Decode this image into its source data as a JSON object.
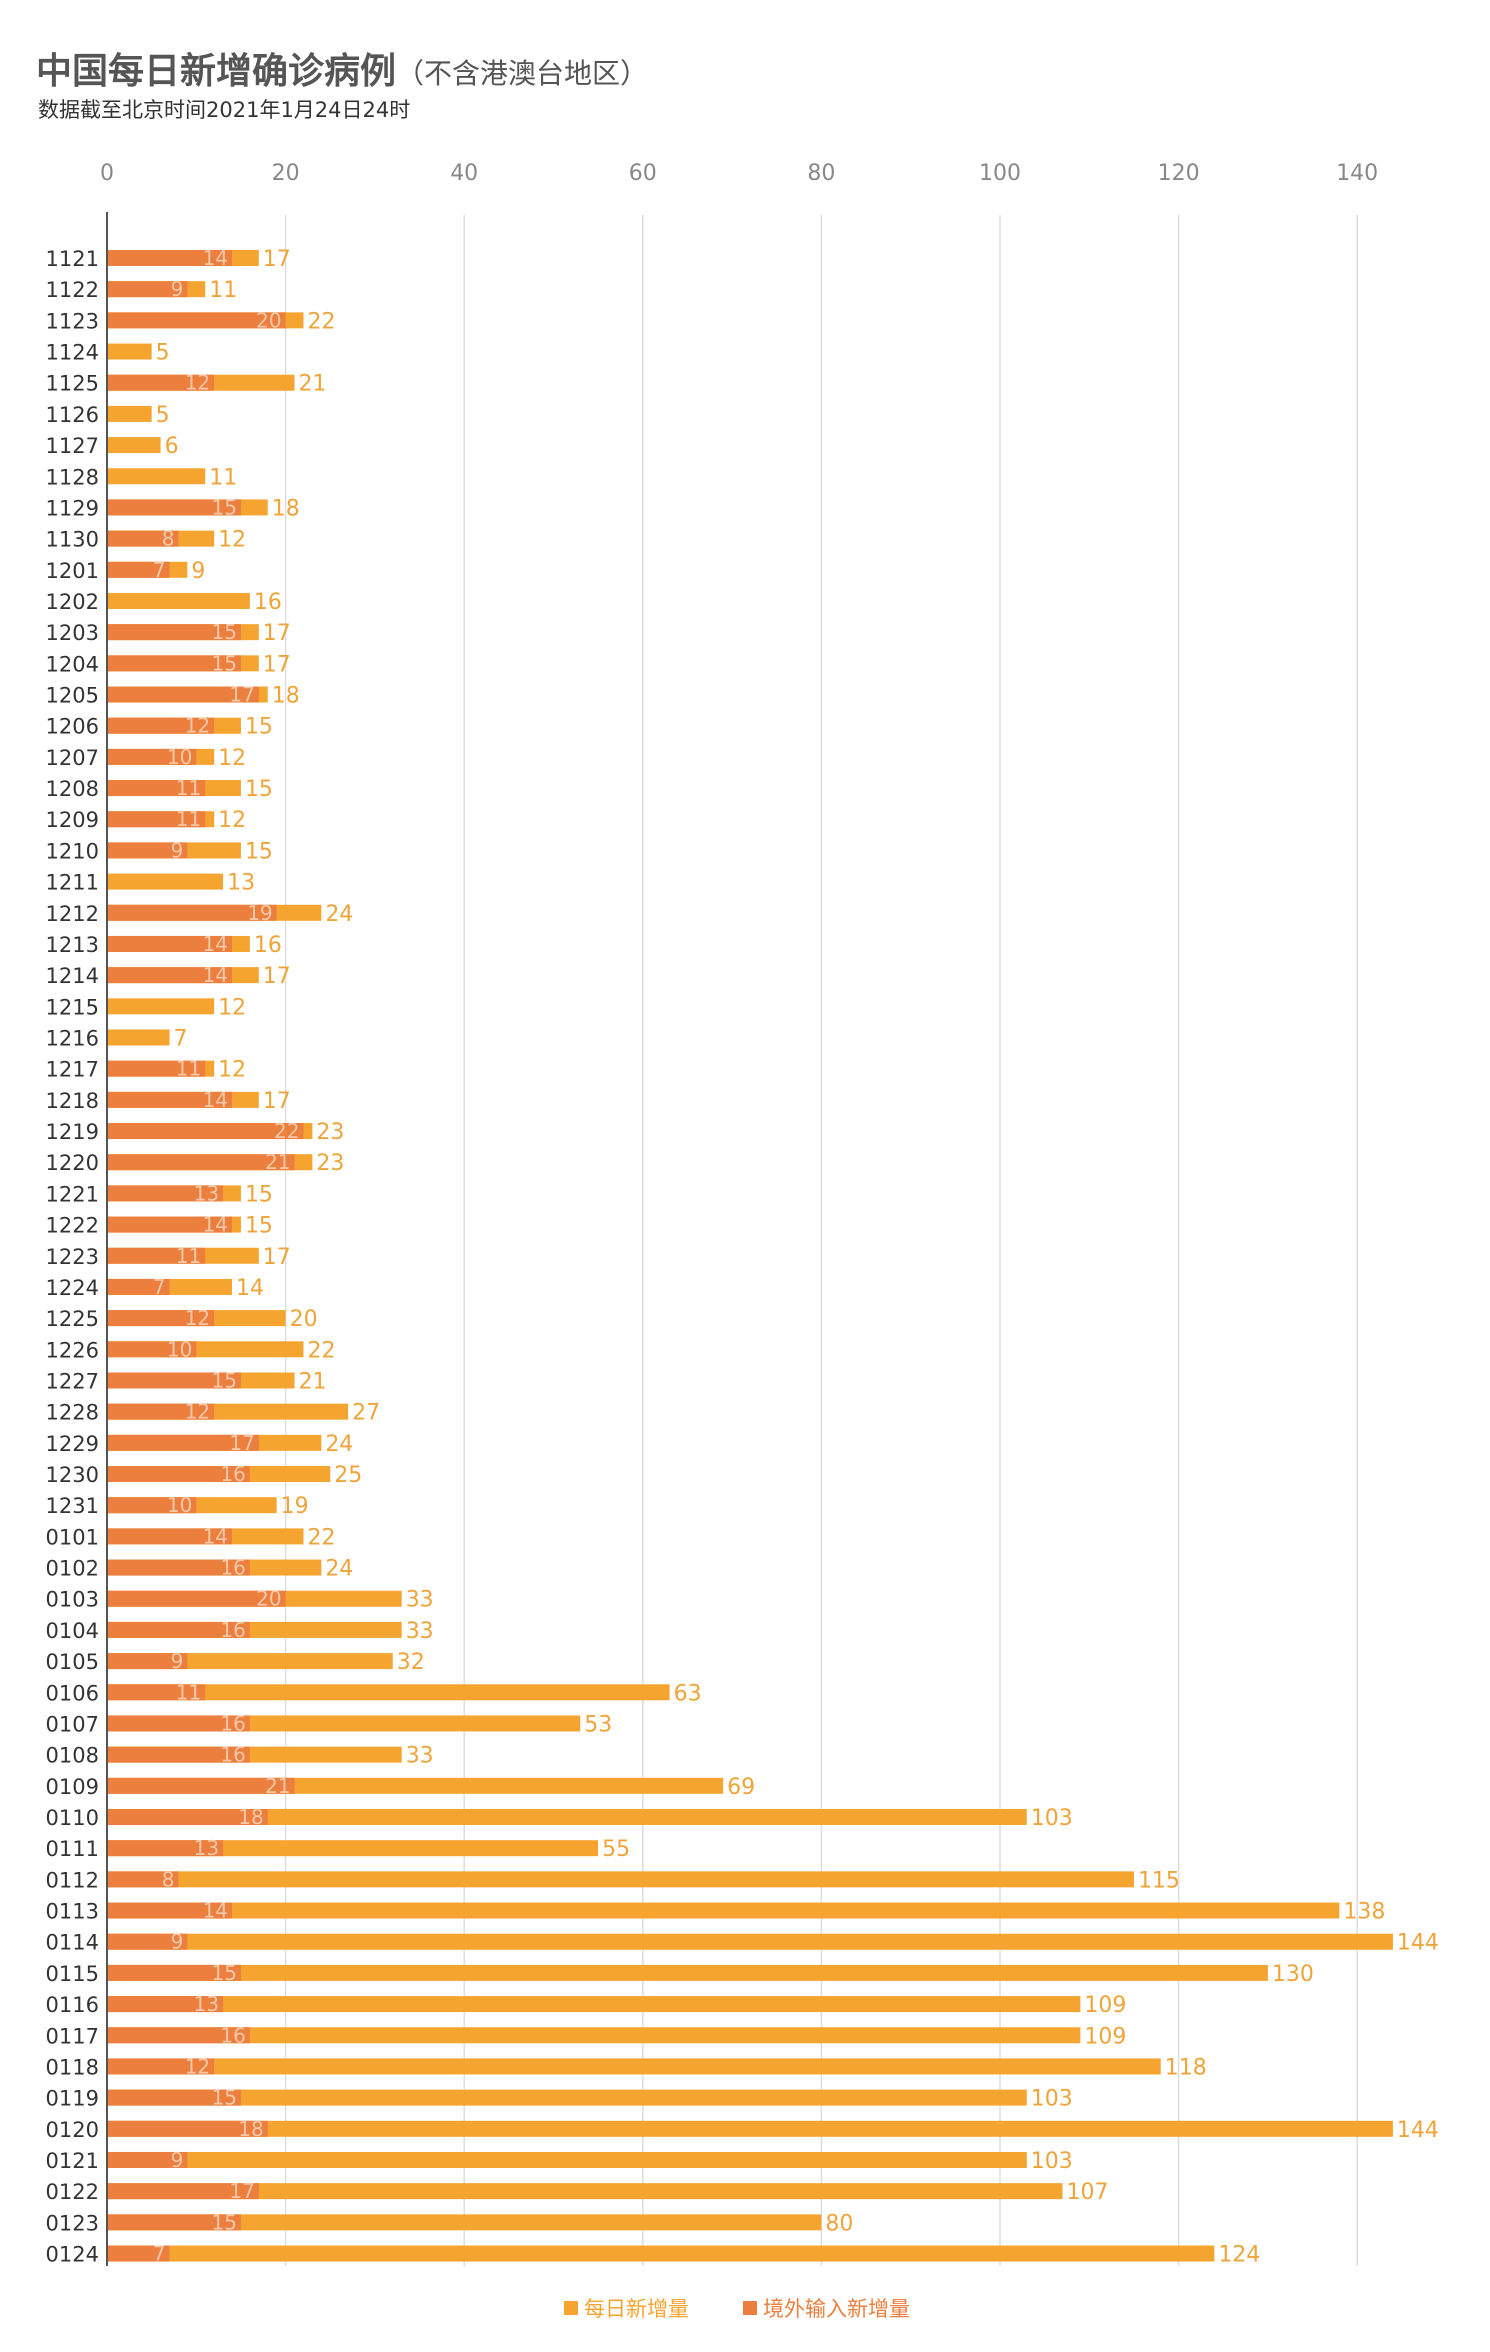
{
  "title": "中国每日新增确诊病例",
  "title_note": "（不含港澳台地区）",
  "subtitle": "数据截至北京时间2021年1月24日24时",
  "colors": {
    "total": "#F5A52F",
    "imported": "#EC7F3E",
    "total_label": "#EFA43A",
    "imported_label": "#F3C8A8",
    "tick_label": "#888888",
    "category_label": "#333333",
    "grid": "#dddddd"
  },
  "legend": {
    "total": "每日新增量",
    "imported": "境外输入新增量"
  },
  "chart_data": {
    "type": "bar",
    "orientation": "horizontal",
    "xlim": [
      0,
      145
    ],
    "xticks": [
      0,
      20,
      40,
      60,
      80,
      100,
      120,
      140
    ],
    "grid": true,
    "legend_position": "bottom",
    "categories": [
      "1121",
      "1122",
      "1123",
      "1124",
      "1125",
      "1126",
      "1127",
      "1128",
      "1129",
      "1130",
      "1201",
      "1202",
      "1203",
      "1204",
      "1205",
      "1206",
      "1207",
      "1208",
      "1209",
      "1210",
      "1211",
      "1212",
      "1213",
      "1214",
      "1215",
      "1216",
      "1217",
      "1218",
      "1219",
      "1220",
      "1221",
      "1222",
      "1223",
      "1224",
      "1225",
      "1226",
      "1227",
      "1228",
      "1229",
      "1230",
      "1231",
      "0101",
      "0102",
      "0103",
      "0104",
      "0105",
      "0106",
      "0107",
      "0108",
      "0109",
      "0110",
      "0111",
      "0112",
      "0113",
      "0114",
      "0115",
      "0116",
      "0117",
      "0118",
      "0119",
      "0120",
      "0121",
      "0122",
      "0123",
      "0124"
    ],
    "series": [
      {
        "name": "每日新增量",
        "values": [
          17,
          11,
          22,
          5,
          21,
          5,
          6,
          11,
          18,
          12,
          9,
          16,
          17,
          17,
          18,
          15,
          12,
          15,
          12,
          15,
          13,
          24,
          16,
          17,
          12,
          7,
          12,
          17,
          23,
          23,
          15,
          15,
          17,
          14,
          20,
          22,
          21,
          27,
          24,
          25,
          19,
          22,
          24,
          33,
          33,
          32,
          63,
          53,
          33,
          69,
          103,
          55,
          115,
          138,
          144,
          130,
          109,
          109,
          118,
          103,
          144,
          103,
          107,
          80,
          124
        ]
      },
      {
        "name": "境外输入新增量",
        "values": [
          14,
          9,
          20,
          null,
          12,
          null,
          null,
          null,
          15,
          8,
          7,
          null,
          15,
          15,
          17,
          12,
          10,
          11,
          11,
          9,
          null,
          19,
          14,
          14,
          null,
          null,
          11,
          14,
          22,
          21,
          13,
          14,
          11,
          7,
          12,
          10,
          15,
          12,
          17,
          16,
          10,
          14,
          16,
          20,
          16,
          9,
          11,
          16,
          16,
          21,
          18,
          13,
          8,
          14,
          9,
          15,
          13,
          16,
          12,
          15,
          18,
          9,
          17,
          15,
          7
        ]
      }
    ]
  }
}
